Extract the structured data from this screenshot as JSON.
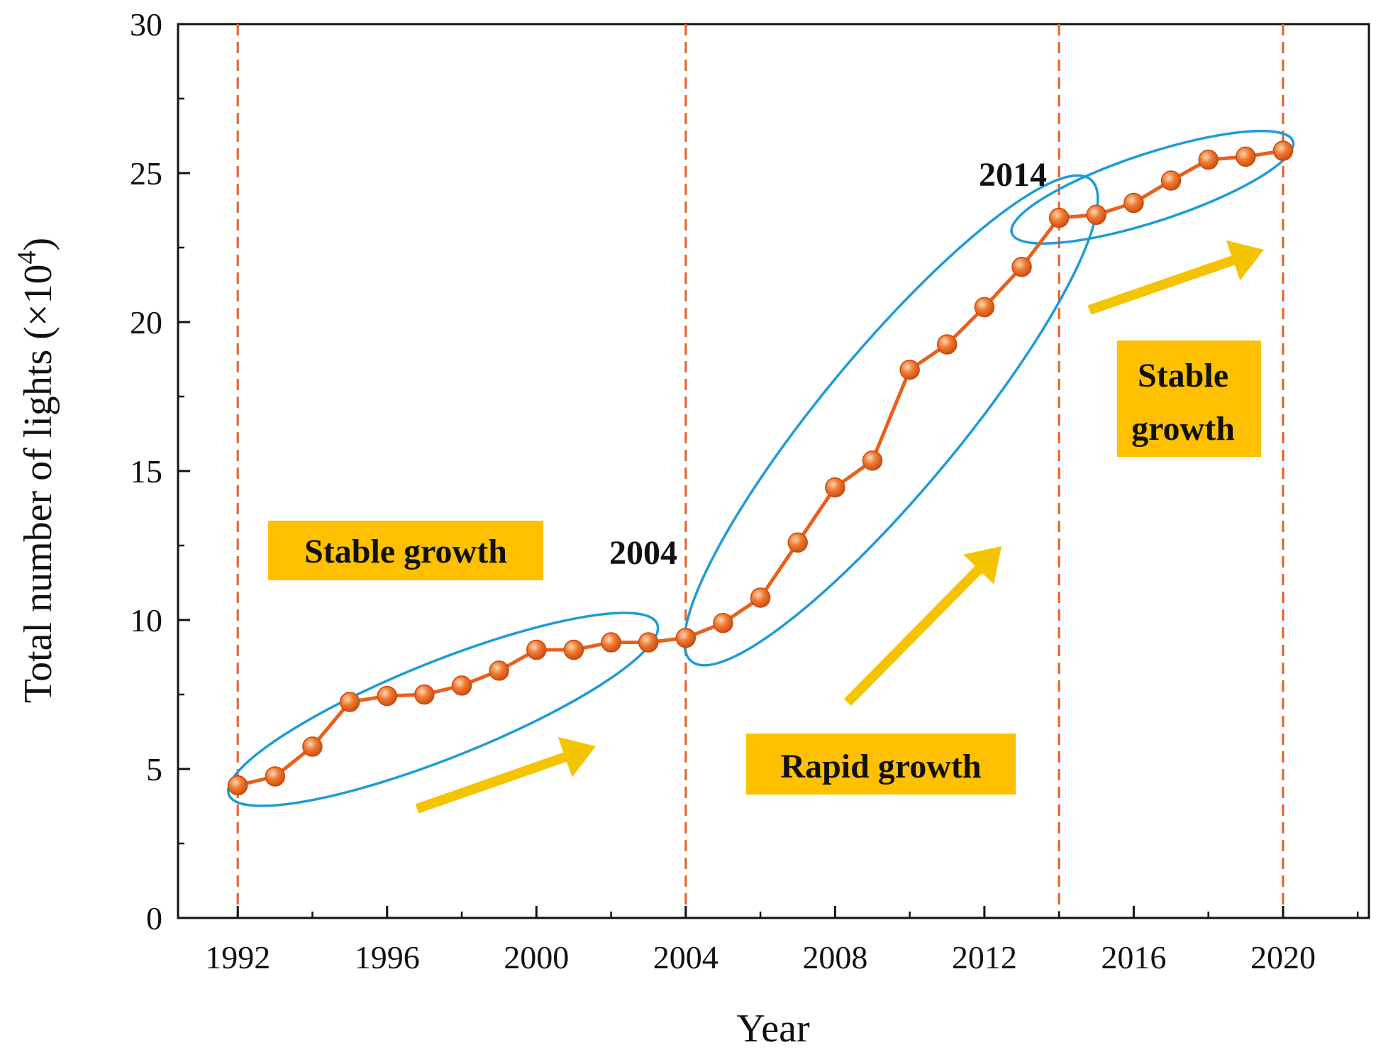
{
  "chart_data": {
    "type": "line",
    "title": "",
    "xlabel": "Year",
    "ylabel": "Total number of lights (×10",
    "ylabel_exponent": "4",
    "ylabel_close": ")",
    "xlim": [
      1990.4,
      2022.3
    ],
    "ylim": [
      0,
      30
    ],
    "xticks": [
      1992,
      1996,
      2000,
      2004,
      2008,
      2012,
      2016,
      2020
    ],
    "xtick_labels": [
      "1992",
      "1996",
      "2000",
      "2004",
      "2008",
      "2012",
      "2016",
      "2020"
    ],
    "yticks": [
      0,
      5,
      10,
      15,
      20,
      25,
      30
    ],
    "ytick_labels": [
      "0",
      "5",
      "10",
      "15",
      "20",
      "25",
      "30"
    ],
    "grid": false,
    "series": [
      {
        "name": "Total number of lights",
        "color": "#E8601C",
        "x": [
          1992,
          1993,
          1994,
          1995,
          1996,
          1997,
          1998,
          1999,
          2000,
          2001,
          2002,
          2003,
          2004,
          2005,
          2006,
          2007,
          2008,
          2009,
          2010,
          2011,
          2012,
          2013,
          2014,
          2015,
          2016,
          2017,
          2018,
          2019,
          2020
        ],
        "values": [
          4.45,
          4.75,
          5.75,
          7.25,
          7.45,
          7.5,
          7.8,
          8.3,
          9.0,
          9.0,
          9.25,
          9.25,
          9.4,
          9.9,
          10.75,
          12.6,
          14.45,
          15.35,
          18.4,
          19.25,
          20.5,
          21.85,
          23.5,
          23.6,
          24.0,
          24.75,
          25.45,
          25.55,
          25.75
        ]
      }
    ],
    "phase_boundaries": [
      1992,
      2004,
      2014,
      2020
    ],
    "annotations": {
      "year_2004": "2004",
      "year_2014": "2014",
      "phase1": "Stable growth",
      "phase2": "Rapid growth",
      "phase3_line1": "Stable",
      "phase3_line2": "growth"
    },
    "colors": {
      "line": "#E8601C",
      "boundary": "#E8601C",
      "ellipse": "#1E9BD7",
      "arrow": "#F5C400",
      "label_box": "#FFC000",
      "axis": "#111111"
    }
  }
}
